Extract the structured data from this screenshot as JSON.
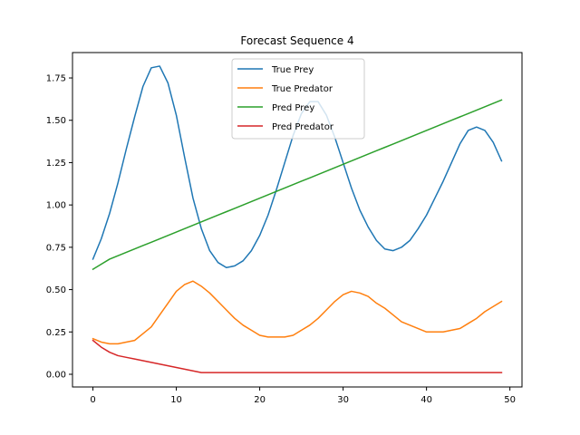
{
  "chart_data": {
    "type": "line",
    "title": "Forecast Sequence 4",
    "xlabel": "",
    "ylabel": "",
    "xlim": [
      -2.45,
      51.45
    ],
    "ylim": [
      -0.075,
      1.9
    ],
    "xticks": [
      0,
      10,
      20,
      30,
      40,
      50
    ],
    "yticks": [
      0.0,
      0.25,
      0.5,
      0.75,
      1.0,
      1.25,
      1.5,
      1.75
    ],
    "ytick_labels": [
      "0.00",
      "0.25",
      "0.50",
      "0.75",
      "1.00",
      "1.25",
      "1.50",
      "1.75"
    ],
    "grid": false,
    "legend_position": "upper-center",
    "series": [
      {
        "name": "True Prey",
        "color": "#1f77b4",
        "values": [
          0.68,
          0.8,
          0.95,
          1.13,
          1.33,
          1.52,
          1.7,
          1.81,
          1.82,
          1.72,
          1.53,
          1.28,
          1.04,
          0.86,
          0.73,
          0.66,
          0.63,
          0.64,
          0.67,
          0.73,
          0.82,
          0.94,
          1.09,
          1.25,
          1.41,
          1.54,
          1.61,
          1.61,
          1.53,
          1.4,
          1.25,
          1.1,
          0.97,
          0.87,
          0.79,
          0.74,
          0.73,
          0.75,
          0.79,
          0.86,
          0.94,
          1.04,
          1.14,
          1.25,
          1.36,
          1.44,
          1.46,
          1.44,
          1.37,
          1.26
        ]
      },
      {
        "name": "True Predator",
        "color": "#ff7f0e",
        "values": [
          0.21,
          0.19,
          0.18,
          0.18,
          0.19,
          0.2,
          0.24,
          0.28,
          0.35,
          0.42,
          0.49,
          0.53,
          0.55,
          0.52,
          0.48,
          0.43,
          0.38,
          0.33,
          0.29,
          0.26,
          0.23,
          0.22,
          0.22,
          0.22,
          0.23,
          0.26,
          0.29,
          0.33,
          0.38,
          0.43,
          0.47,
          0.49,
          0.48,
          0.46,
          0.42,
          0.39,
          0.35,
          0.31,
          0.29,
          0.27,
          0.25,
          0.25,
          0.25,
          0.26,
          0.27,
          0.3,
          0.33,
          0.37,
          0.4,
          0.43
        ]
      },
      {
        "name": "Pred Prey",
        "color": "#2ca02c",
        "values": [
          0.62,
          0.65,
          0.68,
          0.7,
          0.72,
          0.74,
          0.76,
          0.78,
          0.8,
          0.82,
          0.84,
          0.86,
          0.88,
          0.9,
          0.92,
          0.94,
          0.96,
          0.98,
          1.0,
          1.02,
          1.04,
          1.06,
          1.08,
          1.1,
          1.12,
          1.14,
          1.16,
          1.18,
          1.2,
          1.22,
          1.24,
          1.26,
          1.28,
          1.3,
          1.32,
          1.34,
          1.36,
          1.38,
          1.4,
          1.42,
          1.44,
          1.46,
          1.48,
          1.5,
          1.52,
          1.54,
          1.56,
          1.58,
          1.6,
          1.62
        ]
      },
      {
        "name": "Pred Predator",
        "color": "#d62728",
        "values": [
          0.2,
          0.16,
          0.13,
          0.11,
          0.1,
          0.09,
          0.08,
          0.07,
          0.06,
          0.05,
          0.04,
          0.03,
          0.02,
          0.01,
          0.01,
          0.01,
          0.01,
          0.01,
          0.01,
          0.01,
          0.01,
          0.01,
          0.01,
          0.01,
          0.01,
          0.01,
          0.01,
          0.01,
          0.01,
          0.01,
          0.01,
          0.01,
          0.01,
          0.01,
          0.01,
          0.01,
          0.01,
          0.01,
          0.01,
          0.01,
          0.01,
          0.01,
          0.01,
          0.01,
          0.01,
          0.01,
          0.01,
          0.01,
          0.01,
          0.01
        ]
      }
    ]
  }
}
